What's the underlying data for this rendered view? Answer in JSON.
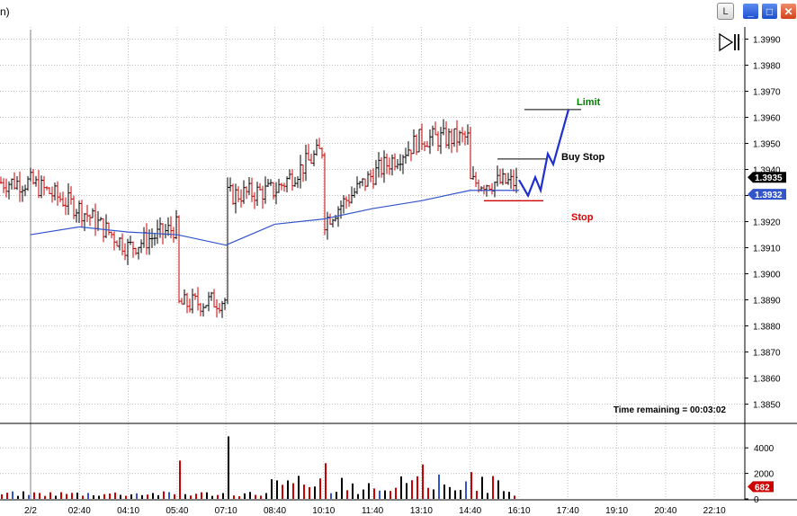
{
  "window": {
    "title_fragment": "n)",
    "lock_label": "L",
    "min_glyph": "_",
    "max_glyph": "□",
    "close_glyph": "✕"
  },
  "play_icon": "play-step-icon",
  "colors": {
    "up_bar": "#000000",
    "down_bar": "#cc0000",
    "moving_average": "#3355cc",
    "trade_path": "#1f2fd0",
    "limit_text": "#008000",
    "buy_stop_text": "#000000",
    "stop_text": "#dd0000",
    "stop_line": "#cc0000",
    "grid": "#c0c0c0",
    "price_tag_bg": "#000000",
    "ma_tag_bg": "#3355cc",
    "volume_tag_bg": "#cc0000"
  },
  "annotations": {
    "limit": "Limit",
    "buy_stop": "Buy Stop",
    "stop": "Stop",
    "time_remaining": "Time remaining = 00:03:02"
  },
  "chart_data": {
    "type": "candlestick-bar",
    "y_axis": {
      "range": [
        1.3842,
        1.4002
      ],
      "ticks": [
        "1.3990",
        "1.3980",
        "1.3970",
        "1.3960",
        "1.3950",
        "1.3940",
        "1.3930",
        "1.3920",
        "1.3910",
        "1.3900",
        "1.3890",
        "1.3880",
        "1.3870",
        "1.3860",
        "1.3850"
      ],
      "grid": true
    },
    "x_axis": {
      "ticks": [
        "2/2",
        "02:40",
        "04:10",
        "05:40",
        "07:10",
        "08:40",
        "10:10",
        "11:40",
        "13:10",
        "14:40",
        "16:10",
        "17:40",
        "19:10",
        "20:40",
        "22:10"
      ],
      "grid": true
    },
    "price_labels": {
      "last_price": "1.3935",
      "moving_average": "1.3932"
    },
    "price_path": [
      [
        "2/2",
        1.3935
      ],
      [
        "02:40",
        1.3925
      ],
      [
        "04:10",
        1.391
      ],
      [
        "05:40",
        1.3918
      ],
      [
        "05:40",
        1.3888
      ],
      [
        "07:10",
        1.389
      ],
      [
        "07:10",
        1.393
      ],
      [
        "08:40",
        1.3932
      ],
      [
        "10:10",
        1.3948
      ],
      [
        "10:10",
        1.392
      ],
      [
        "11:40",
        1.3938
      ],
      [
        "13:10",
        1.3952
      ],
      [
        "14:40",
        1.3952
      ],
      [
        "14:40",
        1.3935
      ],
      [
        "16:10",
        1.3935
      ]
    ],
    "moving_average_path": [
      [
        "2/2",
        1.3915
      ],
      [
        "02:40",
        1.3918
      ],
      [
        "04:10",
        1.3916
      ],
      [
        "05:40",
        1.3915
      ],
      [
        "07:10",
        1.3911
      ],
      [
        "08:40",
        1.3919
      ],
      [
        "10:10",
        1.3921
      ],
      [
        "11:40",
        1.3925
      ],
      [
        "13:10",
        1.3928
      ],
      [
        "14:40",
        1.3932
      ],
      [
        "16:10",
        1.3932
      ]
    ],
    "orders": {
      "limit_price": 1.3963,
      "buy_stop_price": 1.3944,
      "stop_price": 1.3928
    },
    "volume_axis": {
      "ticks": [
        "4000",
        "2000",
        "0"
      ],
      "range": [
        0,
        5000
      ],
      "last_volume_label": "682"
    },
    "volume_spikes": [
      [
        "05:40",
        3000
      ],
      [
        "07:10",
        4900
      ],
      [
        "10:10",
        2800
      ],
      [
        "13:10",
        2700
      ],
      [
        "14:40",
        2100
      ],
      [
        "16:10",
        2600
      ]
    ]
  }
}
